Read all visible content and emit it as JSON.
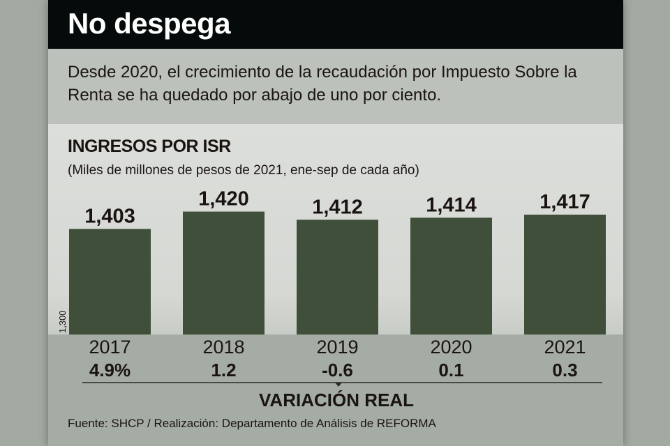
{
  "header": {
    "title": "No despega"
  },
  "subtitle": "Desde 2020, el crecimiento de la recaudación por Impuesto Sobre la Renta se ha quedado por abajo de uno por ciento.",
  "colors": {
    "bar": "#3f4f3a",
    "header_bg": "#050b0b",
    "text": "#1a1411"
  },
  "chart_data": {
    "type": "bar",
    "title": "INGRESOS POR ISR",
    "subtitle": "(Miles de millones de pesos de 2021, ene-sep de cada año)",
    "categories": [
      "2017",
      "2018",
      "2019",
      "2020",
      "2021"
    ],
    "values": [
      1403,
      1420,
      1412,
      1414,
      1417
    ],
    "value_labels": [
      "1,403",
      "1,420",
      "1,412",
      "1,414",
      "1,417"
    ],
    "ylim": [
      1300,
      1430
    ],
    "ybase_label": "1,300",
    "xlabel": "",
    "ylabel": "",
    "grid": false,
    "variation": {
      "label": "VARIACIÓN REAL",
      "values": [
        "4.9%",
        "1.2",
        "-0.6",
        "0.1",
        "0.3"
      ]
    }
  },
  "footer": {
    "source": "Fuente: SHCP / Realización: Departamento de Análisis de REFORMA"
  }
}
